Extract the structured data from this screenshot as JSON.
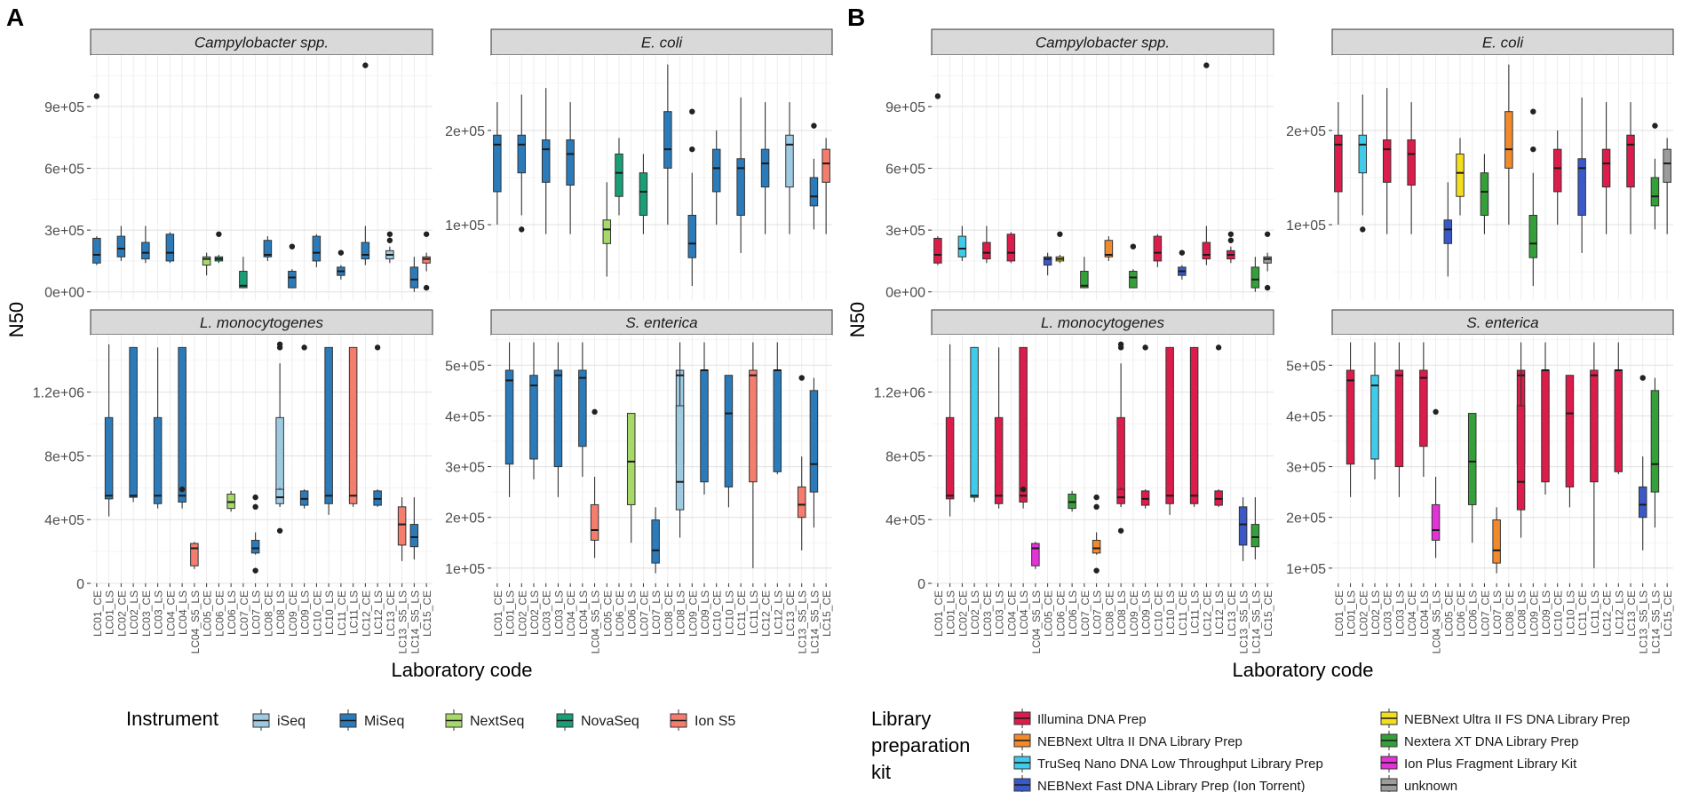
{
  "labs": [
    "LC01_CE",
    "LC01_LS",
    "LC02_CE",
    "LC02_LS",
    "LC03_CE",
    "LC03_LS",
    "LC04_CE",
    "LC04_LS",
    "LC04_S5_LS",
    "LC05_CE",
    "LC06_CE",
    "LC06_LS",
    "LC07_CE",
    "LC07_LS",
    "LC08_CE",
    "LC08_LS",
    "LC09_CE",
    "LC09_LS",
    "LC10_CE",
    "LC10_LS",
    "LC11_CE",
    "LC11_LS",
    "LC12_CE",
    "LC12_LS",
    "LC13_CE",
    "LC13_S5_LS",
    "LC14_S5_LS",
    "LC15_CE"
  ],
  "panelA": {
    "letter": "A",
    "legend_title": "Instrument"
  },
  "panelB": {
    "letter": "B",
    "legend_title": "Library preparation kit"
  },
  "axis": {
    "y_label": "N50",
    "x_label": "Laboratory code"
  },
  "facet_titles": [
    "Campylobacter spp.",
    "E. coli",
    "L. monocytogenes",
    "S. enterica"
  ],
  "instruments": [
    {
      "name": "iSeq",
      "color": "#9ecae1"
    },
    {
      "name": "MiSeq",
      "color": "#2b7bba"
    },
    {
      "name": "NextSeq",
      "color": "#a6d96a"
    },
    {
      "name": "NovaSeq",
      "color": "#1a9e77"
    },
    {
      "name": "Ion S5",
      "color": "#f47d6e"
    }
  ],
  "kits": [
    {
      "name": "Illumina DNA Prep",
      "color": "#dc1c4b"
    },
    {
      "name": "NEBNext Ultra II DNA Library Prep",
      "color": "#f28a2b"
    },
    {
      "name": "TruSeq Nano DNA Low Throughput Library Prep",
      "color": "#3fcbea"
    },
    {
      "name": "NEBNext Fast DNA Library Prep (Ion Torrent)",
      "color": "#3b58c8"
    },
    {
      "name": "NEBNext Ultra II FS DNA Library Prep",
      "color": "#f3dd1f"
    },
    {
      "name": "Nextera XT DNA Library Prep",
      "color": "#35a03a"
    },
    {
      "name": "Ion Plus Fragment Library Kit",
      "color": "#e333d8"
    },
    {
      "name": "unknown",
      "color": "#9c9c9c"
    }
  ],
  "chart_data": {
    "type": "boxplot",
    "xlabel": "Laboratory code",
    "ylabel": "N50",
    "lab_instrument": {
      "LC01_CE": "MiSeq",
      "LC01_LS": "MiSeq",
      "LC02_CE": "MiSeq",
      "LC02_LS": "MiSeq",
      "LC03_CE": "MiSeq",
      "LC03_LS": "MiSeq",
      "LC04_CE": "MiSeq",
      "LC04_LS": "MiSeq",
      "LC04_S5_LS": "Ion S5",
      "LC05_CE": "NextSeq",
      "LC06_CE": "NovaSeq",
      "LC06_LS": "NextSeq",
      "LC07_CE": "NovaSeq",
      "LC07_LS": "MiSeq",
      "LC08_CE": "MiSeq",
      "LC08_LS": "iSeq",
      "LC09_CE": "MiSeq",
      "LC09_LS": "MiSeq",
      "LC10_CE": "MiSeq",
      "LC10_LS": "MiSeq",
      "LC11_CE": "MiSeq",
      "LC11_LS": "Ion S5",
      "LC12_CE": "MiSeq",
      "LC12_LS": "MiSeq",
      "LC13_CE": "iSeq",
      "LC13_S5_LS": "Ion S5",
      "LC14_S5_LS": "MiSeq",
      "LC15_CE": "Ion S5"
    },
    "lab_kit": {
      "LC01_CE": "Illumina DNA Prep",
      "LC01_LS": "Illumina DNA Prep",
      "LC02_CE": "TruSeq Nano DNA Low Throughput Library Prep",
      "LC02_LS": "TruSeq Nano DNA Low Throughput Library Prep",
      "LC03_CE": "Illumina DNA Prep",
      "LC03_LS": "Illumina DNA Prep",
      "LC04_CE": "Illumina DNA Prep",
      "LC04_LS": "Illumina DNA Prep",
      "LC04_S5_LS": "Ion Plus Fragment Library Kit",
      "LC05_CE": "NEBNext Fast DNA Library Prep (Ion Torrent)",
      "LC06_CE": "NEBNext Ultra II FS DNA Library Prep",
      "LC06_LS": "Nextera XT DNA Library Prep",
      "LC07_CE": "Nextera XT DNA Library Prep",
      "LC07_LS": "NEBNext Ultra II DNA Library Prep",
      "LC08_CE": "NEBNext Ultra II DNA Library Prep",
      "LC08_LS": "Illumina DNA Prep",
      "LC09_CE": "Nextera XT DNA Library Prep",
      "LC09_LS": "Illumina DNA Prep",
      "LC10_CE": "Illumina DNA Prep",
      "LC10_LS": "Illumina DNA Prep",
      "LC11_CE": "NEBNext Fast DNA Library Prep (Ion Torrent)",
      "LC11_LS": "Illumina DNA Prep",
      "LC12_CE": "Illumina DNA Prep",
      "LC12_LS": "Illumina DNA Prep",
      "LC13_CE": "Illumina DNA Prep",
      "LC13_S5_LS": "NEBNext Fast DNA Library Prep (Ion Torrent)",
      "LC14_S5_LS": "Nextera XT DNA Library Prep",
      "LC15_CE": "unknown"
    },
    "facets": [
      {
        "title": "Campylobacter spp.",
        "ylim": [
          -40000,
          1150000
        ],
        "y_ticks": [
          0,
          300000,
          600000,
          900000
        ],
        "y_tick_labels": [
          "0e+00",
          "3e+05",
          "6e+05",
          "9e+05"
        ],
        "boxes": [
          {
            "lab": "LC01_CE",
            "min": 130000,
            "q1": 140000,
            "median": 180000,
            "q3": 260000,
            "max": 270000,
            "outliers": [
              950000
            ]
          },
          {
            "lab": "LC02_CE",
            "min": 150000,
            "q1": 170000,
            "median": 210000,
            "q3": 270000,
            "max": 320000,
            "outliers": []
          },
          {
            "lab": "LC03_CE",
            "min": 140000,
            "q1": 160000,
            "median": 190000,
            "q3": 240000,
            "max": 320000,
            "outliers": []
          },
          {
            "lab": "LC04_CE",
            "min": 140000,
            "q1": 150000,
            "median": 190000,
            "q3": 280000,
            "max": 290000,
            "outliers": []
          },
          {
            "lab": "LC05_CE",
            "min": 80000,
            "q1": 130000,
            "median": 160000,
            "q3": 170000,
            "max": 190000,
            "outliers": []
          },
          {
            "lab": "LC06_CE",
            "min": 140000,
            "q1": 150000,
            "median": 160000,
            "q3": 170000,
            "max": 180000,
            "outliers": [
              280000
            ]
          },
          {
            "lab": "LC07_CE",
            "min": 20000,
            "q1": 20000,
            "median": 30000,
            "q3": 100000,
            "max": 170000,
            "outliers": []
          },
          {
            "lab": "LC08_CE",
            "min": 150000,
            "q1": 170000,
            "median": 180000,
            "q3": 250000,
            "max": 270000,
            "outliers": []
          },
          {
            "lab": "LC09_CE",
            "min": 20000,
            "q1": 20000,
            "median": 70000,
            "q3": 100000,
            "max": 110000,
            "outliers": [
              220000
            ]
          },
          {
            "lab": "LC10_CE",
            "min": 120000,
            "q1": 150000,
            "median": 190000,
            "q3": 270000,
            "max": 280000,
            "outliers": []
          },
          {
            "lab": "LC11_CE",
            "min": 60000,
            "q1": 80000,
            "median": 100000,
            "q3": 120000,
            "max": 130000,
            "outliers": [
              190000
            ]
          },
          {
            "lab": "LC12_CE",
            "min": 130000,
            "q1": 160000,
            "median": 180000,
            "q3": 240000,
            "max": 320000,
            "outliers": [
              1100000
            ]
          },
          {
            "lab": "LC13_CE",
            "min": 140000,
            "q1": 160000,
            "median": 180000,
            "q3": 200000,
            "max": 220000,
            "outliers": [
              250000,
              280000
            ]
          },
          {
            "lab": "LC14_S5_LS",
            "min": 0,
            "q1": 20000,
            "median": 60000,
            "q3": 120000,
            "max": 170000,
            "outliers": []
          },
          {
            "lab": "LC15_CE",
            "min": 100000,
            "q1": 140000,
            "median": 160000,
            "q3": 170000,
            "max": 190000,
            "outliers": [
              280000,
              20000
            ]
          }
        ]
      },
      {
        "title": "E. coli",
        "ylim": [
          20000,
          280000
        ],
        "y_ticks": [
          100000,
          200000
        ],
        "y_tick_labels": [
          "1e+05",
          "2e+05"
        ],
        "boxes": [
          {
            "lab": "LC01_CE",
            "min": 100000,
            "q1": 135000,
            "median": 185000,
            "q3": 195000,
            "max": 230000,
            "outliers": []
          },
          {
            "lab": "LC02_CE",
            "min": 110000,
            "q1": 155000,
            "median": 185000,
            "q3": 195000,
            "max": 238000,
            "outliers": [
              95000
            ]
          },
          {
            "lab": "LC03_CE",
            "min": 90000,
            "q1": 145000,
            "median": 180000,
            "q3": 190000,
            "max": 245000,
            "outliers": []
          },
          {
            "lab": "LC04_CE",
            "min": 90000,
            "q1": 142000,
            "median": 175000,
            "q3": 190000,
            "max": 230000,
            "outliers": []
          },
          {
            "lab": "LC05_CE",
            "min": 45000,
            "q1": 80000,
            "median": 95000,
            "q3": 105000,
            "max": 145000,
            "outliers": []
          },
          {
            "lab": "LC06_CE",
            "min": 110000,
            "q1": 130000,
            "median": 155000,
            "q3": 175000,
            "max": 192000,
            "outliers": []
          },
          {
            "lab": "LC07_CE",
            "min": 90000,
            "q1": 110000,
            "median": 135000,
            "q3": 155000,
            "max": 175000,
            "outliers": []
          },
          {
            "lab": "LC08_CE",
            "min": 100000,
            "q1": 160000,
            "median": 180000,
            "q3": 220000,
            "max": 270000,
            "outliers": []
          },
          {
            "lab": "LC09_CE",
            "min": 35000,
            "q1": 65000,
            "median": 80000,
            "q3": 110000,
            "max": 155000,
            "outliers": [
              220000,
              180000
            ]
          },
          {
            "lab": "LC10_CE",
            "min": 100000,
            "q1": 135000,
            "median": 160000,
            "q3": 180000,
            "max": 200000,
            "outliers": []
          },
          {
            "lab": "LC11_CE",
            "min": 70000,
            "q1": 110000,
            "median": 160000,
            "q3": 170000,
            "max": 235000,
            "outliers": []
          },
          {
            "lab": "LC12_CE",
            "min": 90000,
            "q1": 140000,
            "median": 165000,
            "q3": 180000,
            "max": 230000,
            "outliers": []
          },
          {
            "lab": "LC13_CE",
            "min": 90000,
            "q1": 140000,
            "median": 185000,
            "q3": 195000,
            "max": 230000,
            "outliers": []
          },
          {
            "lab": "LC14_S5_LS",
            "min": 95000,
            "q1": 120000,
            "median": 130000,
            "q3": 150000,
            "max": 170000,
            "outliers": [
              205000
            ]
          },
          {
            "lab": "LC15_CE",
            "min": 90000,
            "q1": 145000,
            "median": 165000,
            "q3": 180000,
            "max": 192000,
            "outliers": []
          }
        ]
      },
      {
        "title": "L. monocytogenes",
        "ylim": [
          0,
          1560000
        ],
        "y_ticks": [
          0,
          400000,
          800000,
          1200000
        ],
        "y_tick_labels": [
          "0",
          "4e+05",
          "8e+05",
          "1.2e+06"
        ],
        "boxes": [
          {
            "lab": "LC01_LS",
            "min": 420000,
            "q1": 530000,
            "median": 550000,
            "q3": 1040000,
            "max": 1500000,
            "outliers": []
          },
          {
            "lab": "LC02_LS",
            "min": 510000,
            "q1": 540000,
            "median": 550000,
            "q3": 1480000,
            "max": 1480000,
            "outliers": []
          },
          {
            "lab": "LC03_LS",
            "min": 470000,
            "q1": 500000,
            "median": 550000,
            "q3": 1040000,
            "max": 1480000,
            "outliers": []
          },
          {
            "lab": "LC04_LS",
            "min": 470000,
            "q1": 510000,
            "median": 550000,
            "q3": 1480000,
            "max": 1480000,
            "outliers": [
              590000
            ]
          },
          {
            "lab": "LC04_S5_LS",
            "min": 90000,
            "q1": 110000,
            "median": 220000,
            "q3": 250000,
            "max": 260000,
            "outliers": []
          },
          {
            "lab": "LC06_LS",
            "min": 450000,
            "q1": 470000,
            "median": 510000,
            "q3": 560000,
            "max": 580000,
            "outliers": []
          },
          {
            "lab": "LC07_LS",
            "min": 180000,
            "q1": 190000,
            "median": 220000,
            "q3": 270000,
            "max": 320000,
            "outliers": [
              80000,
              480000,
              540000
            ]
          },
          {
            "lab": "LC08_LS",
            "min": 480000,
            "q1": 530000,
            "median": 550000,
            "q3": 1040000,
            "max": 1380000,
            "outliers": []
          },
          {
            "lab": "LC08_LS",
            "min": 480000,
            "q1": 500000,
            "median": 540000,
            "q3": 590000,
            "max": 600000,
            "outliers": [
              1480000,
              1500000,
              330000
            ]
          },
          {
            "lab": "LC09_LS",
            "min": 470000,
            "q1": 490000,
            "median": 530000,
            "q3": 580000,
            "max": 590000,
            "outliers": [
              1480000
            ]
          },
          {
            "lab": "LC10_LS",
            "min": 430000,
            "q1": 500000,
            "median": 550000,
            "q3": 1480000,
            "max": 1480000,
            "outliers": []
          },
          {
            "lab": "LC11_LS",
            "min": 480000,
            "q1": 500000,
            "median": 550000,
            "q3": 1480000,
            "max": 1480000,
            "outliers": []
          },
          {
            "lab": "LC12_LS",
            "min": 480000,
            "q1": 490000,
            "median": 530000,
            "q3": 580000,
            "max": 590000,
            "outliers": [
              1480000
            ]
          },
          {
            "lab": "LC13_S5_LS",
            "min": 140000,
            "q1": 240000,
            "median": 370000,
            "q3": 480000,
            "max": 540000,
            "outliers": []
          },
          {
            "lab": "LC14_S5_LS",
            "min": 150000,
            "q1": 230000,
            "median": 290000,
            "q3": 370000,
            "max": 540000,
            "outliers": []
          }
        ]
      },
      {
        "title": "S. enterica",
        "ylim": [
          70000,
          560000
        ],
        "y_ticks": [
          100000,
          200000,
          300000,
          400000,
          500000
        ],
        "y_tick_labels": [
          "1e+05",
          "2e+05",
          "3e+05",
          "4e+05",
          "5e+05"
        ],
        "boxes": [
          {
            "lab": "LC01_LS",
            "min": 240000,
            "q1": 305000,
            "median": 470000,
            "q3": 490000,
            "max": 545000,
            "outliers": []
          },
          {
            "lab": "LC02_LS",
            "min": 275000,
            "q1": 315000,
            "median": 460000,
            "q3": 480000,
            "max": 545000,
            "outliers": []
          },
          {
            "lab": "LC03_LS",
            "min": 240000,
            "q1": 300000,
            "median": 480000,
            "q3": 490000,
            "max": 545000,
            "outliers": []
          },
          {
            "lab": "LC04_LS",
            "min": 280000,
            "q1": 340000,
            "median": 475000,
            "q3": 490000,
            "max": 545000,
            "outliers": []
          },
          {
            "lab": "LC04_S5_LS",
            "min": 120000,
            "q1": 155000,
            "median": 175000,
            "q3": 225000,
            "max": 280000,
            "outliers": [
              408000
            ]
          },
          {
            "lab": "LC06_LS",
            "min": 150000,
            "q1": 225000,
            "median": 310000,
            "q3": 405000,
            "max": 405000,
            "outliers": []
          },
          {
            "lab": "LC07_LS",
            "min": 90000,
            "q1": 110000,
            "median": 135000,
            "q3": 195000,
            "max": 220000,
            "outliers": []
          },
          {
            "lab": "LC08_LS",
            "min": 280000,
            "q1": 305000,
            "median": 480000,
            "q3": 490000,
            "max": 545000,
            "outliers": []
          },
          {
            "lab": "LC08_LS",
            "min": 160000,
            "q1": 215000,
            "median": 270000,
            "q3": 420000,
            "max": 490000,
            "outliers": []
          },
          {
            "lab": "LC09_LS",
            "min": 245000,
            "q1": 270000,
            "median": 490000,
            "q3": 490000,
            "max": 545000,
            "outliers": []
          },
          {
            "lab": "LC10_LS",
            "min": 220000,
            "q1": 260000,
            "median": 405000,
            "q3": 480000,
            "max": 480000,
            "outliers": []
          },
          {
            "lab": "LC11_LS",
            "min": 100000,
            "q1": 270000,
            "median": 480000,
            "q3": 490000,
            "max": 545000,
            "outliers": []
          },
          {
            "lab": "LC12_LS",
            "min": 285000,
            "q1": 290000,
            "median": 490000,
            "q3": 490000,
            "max": 545000,
            "outliers": []
          },
          {
            "lab": "LC13_S5_LS",
            "min": 135000,
            "q1": 200000,
            "median": 225000,
            "q3": 260000,
            "max": 320000,
            "outliers": [
              475000
            ]
          },
          {
            "lab": "LC14_S5_LS",
            "min": 180000,
            "q1": 250000,
            "median": 305000,
            "q3": 450000,
            "max": 475000,
            "outliers": []
          }
        ]
      }
    ]
  }
}
